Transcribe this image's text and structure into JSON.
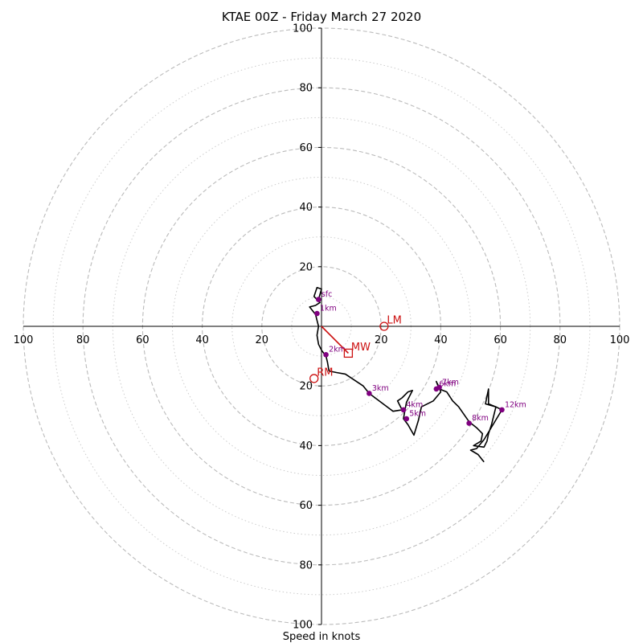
{
  "chart_data": {
    "type": "hodograph",
    "title": "KTAE 00Z - Friday March 27 2020",
    "xlabel": "Speed in knots",
    "ylabel": "",
    "units": "knots",
    "xlim": [
      -100,
      100
    ],
    "ylim": [
      -100,
      100
    ],
    "ring_major": [
      20,
      40,
      60,
      80,
      100
    ],
    "ring_minor": [
      10,
      30,
      50,
      70,
      90
    ],
    "x_ticks": [
      {
        "value": -100,
        "label": "100"
      },
      {
        "value": -80,
        "label": "80"
      },
      {
        "value": -60,
        "label": "60"
      },
      {
        "value": -40,
        "label": "40"
      },
      {
        "value": -20,
        "label": "20"
      },
      {
        "value": 20,
        "label": "20"
      },
      {
        "value": 40,
        "label": "40"
      },
      {
        "value": 60,
        "label": "60"
      },
      {
        "value": 80,
        "label": "80"
      },
      {
        "value": 100,
        "label": "100"
      }
    ],
    "y_ticks": [
      {
        "value": 100,
        "label": "100"
      },
      {
        "value": 80,
        "label": "80"
      },
      {
        "value": 60,
        "label": "60"
      },
      {
        "value": 40,
        "label": "40"
      },
      {
        "value": 20,
        "label": "20"
      },
      {
        "value": -20,
        "label": "20"
      },
      {
        "value": -40,
        "label": "40"
      },
      {
        "value": -60,
        "label": "60"
      },
      {
        "value": -80,
        "label": "80"
      },
      {
        "value": -100,
        "label": "100"
      }
    ],
    "hodograph_trace": [
      [
        -1,
        9
      ],
      [
        0,
        12.5
      ],
      [
        -1.5,
        13
      ],
      [
        -2.5,
        10
      ],
      [
        -0.5,
        8
      ],
      [
        -2,
        7
      ],
      [
        -4,
        6.5
      ],
      [
        -2,
        4
      ],
      [
        -1.5,
        2
      ],
      [
        -1,
        0
      ],
      [
        -1.5,
        -3
      ],
      [
        -1,
        -6
      ],
      [
        0,
        -8
      ],
      [
        1.5,
        -10
      ],
      [
        2,
        -12
      ],
      [
        2.5,
        -15
      ],
      [
        5,
        -15.5
      ],
      [
        8,
        -16
      ],
      [
        11,
        -18
      ],
      [
        14,
        -20
      ],
      [
        16,
        -22.5
      ],
      [
        20,
        -25.5
      ],
      [
        24,
        -28.5
      ],
      [
        27,
        -28
      ],
      [
        26,
        -26
      ],
      [
        25.5,
        -25
      ],
      [
        27,
        -24
      ],
      [
        29,
        -22
      ],
      [
        30.5,
        -21.5
      ],
      [
        29.5,
        -23.5
      ],
      [
        28.5,
        -25.5
      ],
      [
        28,
        -28
      ],
      [
        27.5,
        -31
      ],
      [
        29,
        -33
      ],
      [
        31,
        -36.5
      ],
      [
        32.5,
        -31.5
      ],
      [
        33.5,
        -27
      ],
      [
        37.5,
        -25
      ],
      [
        40,
        -22
      ],
      [
        39.5,
        -20.5
      ],
      [
        38.5,
        -18.5
      ],
      [
        39.5,
        -21
      ],
      [
        42,
        -22
      ],
      [
        44,
        -25
      ],
      [
        46,
        -27
      ],
      [
        49.5,
        -32
      ],
      [
        52,
        -34
      ],
      [
        54,
        -36
      ],
      [
        53.5,
        -38.5
      ],
      [
        51,
        -40
      ],
      [
        54.5,
        -40.5
      ],
      [
        55.5,
        -38.5
      ],
      [
        56,
        -36
      ],
      [
        57,
        -33
      ],
      [
        58.5,
        -27
      ],
      [
        56,
        -26
      ],
      [
        56,
        -23
      ],
      [
        56,
        -21
      ],
      [
        55,
        -26
      ],
      [
        58.5,
        -27
      ],
      [
        60.5,
        -28
      ],
      [
        54.5,
        -38
      ],
      [
        52,
        -41
      ],
      [
        50,
        -41.5
      ],
      [
        52.5,
        -43
      ],
      [
        54.5,
        -45.5
      ]
    ],
    "height_markers": [
      {
        "label": "sfc",
        "u": -1,
        "v": 9
      },
      {
        "label": "1km",
        "u": -1.5,
        "v": 4.3
      },
      {
        "label": "2km",
        "u": 1.5,
        "v": -9.5
      },
      {
        "label": "3km",
        "u": 16,
        "v": -22.5
      },
      {
        "label": "4km",
        "u": 27.5,
        "v": -28
      },
      {
        "label": "5km",
        "u": 28.5,
        "v": -31
      },
      {
        "label": "6km",
        "u": 38.5,
        "v": -21
      },
      {
        "label": "7km",
        "u": 39.5,
        "v": -20.5
      },
      {
        "label": "8km",
        "u": 49.5,
        "v": -32.5
      },
      {
        "label": "12km",
        "u": 60.5,
        "v": -28
      }
    ],
    "storm_motion": [
      {
        "label": "MW",
        "u": 9,
        "v": -9,
        "marker": "square"
      },
      {
        "label": "LM",
        "u": 21,
        "v": 0,
        "marker": "circle"
      },
      {
        "label": "RM",
        "u": -2.5,
        "v": -17.5,
        "marker": "circle"
      }
    ],
    "mean_wind_vector": {
      "u": 9,
      "v": -9
    },
    "colors": {
      "trace": "#000000",
      "height_marker": "#800080",
      "storm_motion": "#cc1111",
      "major_ring": "#bbbbbb",
      "minor_ring": "#cccccc",
      "axis": "#000000"
    }
  }
}
